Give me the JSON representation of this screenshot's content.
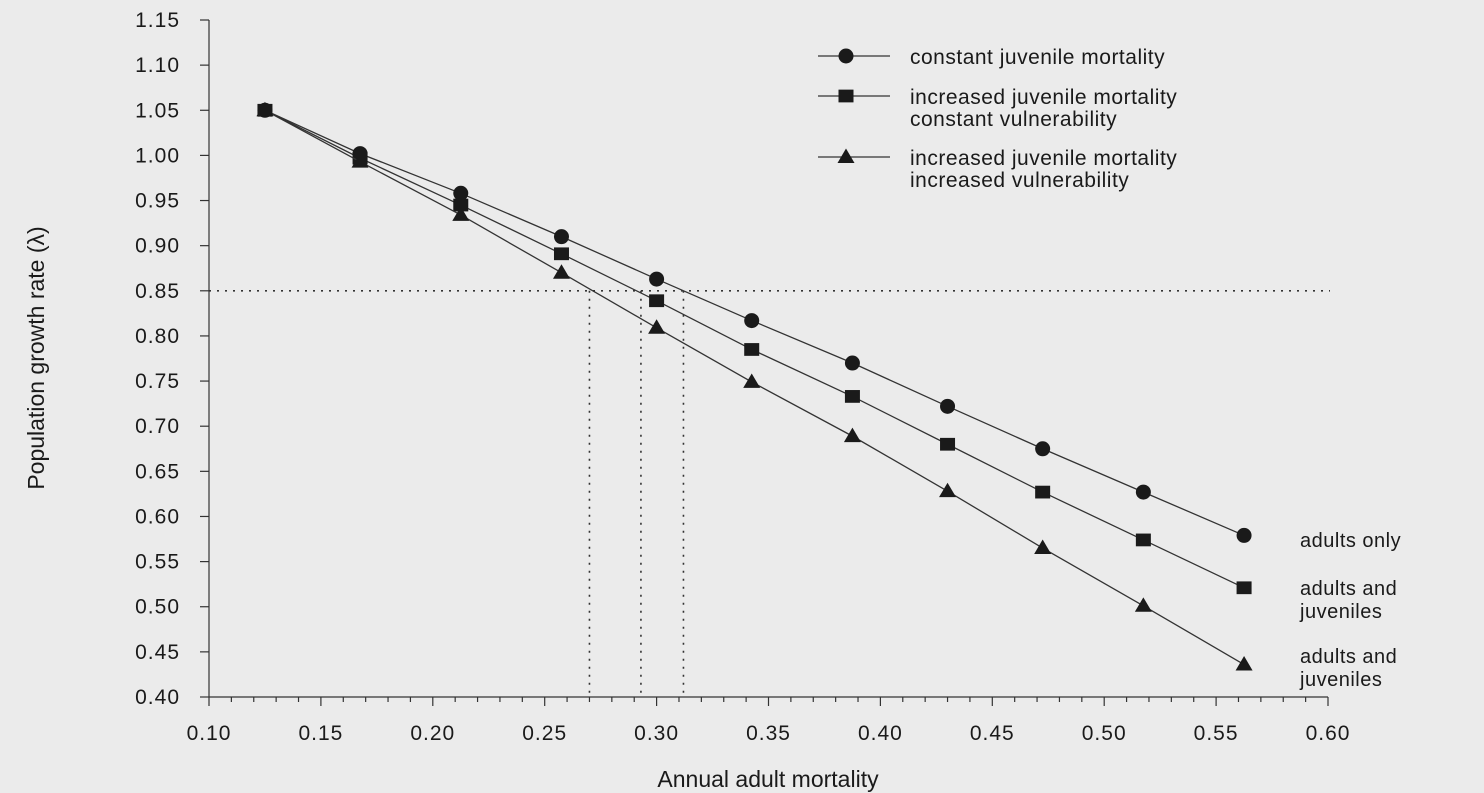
{
  "chart_data": {
    "type": "line",
    "title": "",
    "xlabel": "Annual adult mortality",
    "ylabel": "Population growth rate (λ)",
    "xlim": [
      0.1,
      0.6
    ],
    "ylim": [
      0.4,
      1.15
    ],
    "x_ticks": [
      "0.10",
      "0.15",
      "0.20",
      "0.25",
      "0.30",
      "0.35",
      "0.40",
      "0.45",
      "0.50",
      "0.55",
      "0.60"
    ],
    "y_ticks": [
      "0.40",
      "0.45",
      "0.50",
      "0.55",
      "0.60",
      "0.65",
      "0.70",
      "0.75",
      "0.80",
      "0.85",
      "0.90",
      "0.95",
      "1.00",
      "1.05",
      "1.10",
      "1.15"
    ],
    "grid": false,
    "legend_position": "top-right",
    "x": [
      0.125,
      0.1675,
      0.2125,
      0.2575,
      0.3,
      0.3425,
      0.3875,
      0.43,
      0.4725,
      0.5175,
      0.5625
    ],
    "series": [
      {
        "name": "constant juvenile mortality",
        "marker": "circle",
        "values": [
          1.05,
          1.002,
          0.958,
          0.91,
          0.863,
          0.817,
          0.77,
          0.722,
          0.675,
          0.627,
          0.579
        ]
      },
      {
        "name": "increased juvenile mortality constant vulnerability",
        "legend_lines": [
          "increased juvenile mortality",
          "constant vulnerability"
        ],
        "marker": "square",
        "values": [
          1.05,
          0.997,
          0.945,
          0.891,
          0.839,
          0.785,
          0.733,
          0.68,
          0.627,
          0.574,
          0.521
        ]
      },
      {
        "name": "increased juvenile mortality increased vulnerability",
        "legend_lines": [
          "increased juvenile mortality",
          "increased vulnerability"
        ],
        "marker": "triangle",
        "values": [
          1.05,
          0.993,
          0.934,
          0.87,
          0.809,
          0.749,
          0.689,
          0.628,
          0.565,
          0.501,
          0.436
        ]
      }
    ],
    "reference_lines": {
      "horizontal_y": 0.85,
      "vertical_x": [
        0.27,
        0.293,
        0.312
      ]
    },
    "end_annotations": [
      {
        "series": 0,
        "lines": [
          "adults only"
        ]
      },
      {
        "series": 1,
        "lines": [
          "adults and",
          "juveniles"
        ]
      },
      {
        "series": 2,
        "lines": [
          "adults and",
          "juveniles"
        ]
      }
    ]
  }
}
